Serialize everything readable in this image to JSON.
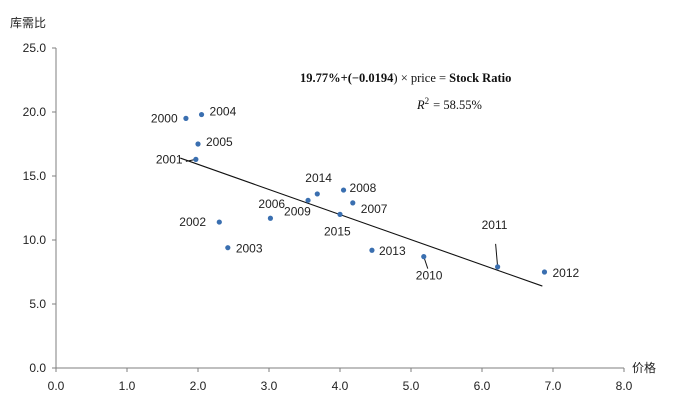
{
  "chart_data": {
    "type": "scatter",
    "xlabel": "价格",
    "ylabel": "库需比",
    "xlim": [
      0,
      8
    ],
    "ylim": [
      0,
      25
    ],
    "x_ticks": [
      "0.0",
      "1.0",
      "2.0",
      "3.0",
      "4.0",
      "5.0",
      "6.0",
      "7.0",
      "8.0"
    ],
    "y_ticks": [
      "0.0",
      "5.0",
      "10.0",
      "15.0",
      "20.0",
      "25.0"
    ],
    "grid": false,
    "marker_color": "#3a6fb0",
    "points": [
      {
        "label": "2000",
        "x": 1.83,
        "y": 19.5
      },
      {
        "label": "2004",
        "x": 2.05,
        "y": 19.8
      },
      {
        "label": "2005",
        "x": 2.0,
        "y": 17.5
      },
      {
        "label": "2001",
        "x": 1.97,
        "y": 16.3
      },
      {
        "label": "2002",
        "x": 2.3,
        "y": 11.4
      },
      {
        "label": "2003",
        "x": 2.42,
        "y": 9.4
      },
      {
        "label": "2006",
        "x": 3.02,
        "y": 11.7
      },
      {
        "label": "2009",
        "x": 3.55,
        "y": 13.1
      },
      {
        "label": "2014",
        "x": 3.68,
        "y": 13.6
      },
      {
        "label": "2008",
        "x": 4.05,
        "y": 13.9
      },
      {
        "label": "2015",
        "x": 4.0,
        "y": 12.0
      },
      {
        "label": "2007",
        "x": 4.18,
        "y": 12.9
      },
      {
        "label": "2013",
        "x": 4.45,
        "y": 9.2
      },
      {
        "label": "2010",
        "x": 5.18,
        "y": 8.7
      },
      {
        "label": "2011",
        "x": 6.22,
        "y": 7.9
      },
      {
        "label": "2012",
        "x": 6.88,
        "y": 7.5
      }
    ],
    "trendline": {
      "x": [
        1.75,
        6.85
      ],
      "y": [
        16.4,
        6.4
      ],
      "equation": {
        "intercept": "19.77%+(",
        "slope": "−0.0194",
        "price_part": ") × price = ",
        "result": "Stock Ratio"
      },
      "r_squared": "= 58.55%"
    }
  }
}
